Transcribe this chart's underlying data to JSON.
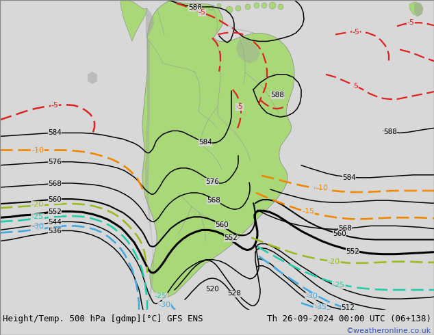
{
  "title_left": "Height/Temp. 500 hPa [gdmp][°C] GFS ENS",
  "title_right": "Th 26-09-2024 00:00 UTC (06+138)",
  "watermark": "©weatheronline.co.uk",
  "bg_color": "#d8d8d8",
  "land_color": "#a8d878",
  "land_gray_color": "#a0a0a0",
  "height_color": "#000000",
  "temp_colors": {
    "5": "#dd2222",
    "-5": "#dd2222",
    "-10": "#ee8800",
    "-15": "#ee8800",
    "-20": "#99bb22",
    "-25": "#22ccaa",
    "-30": "#44aadd",
    "-35": "#44aadd"
  },
  "figsize": [
    6.34,
    4.9
  ],
  "dpi": 100
}
